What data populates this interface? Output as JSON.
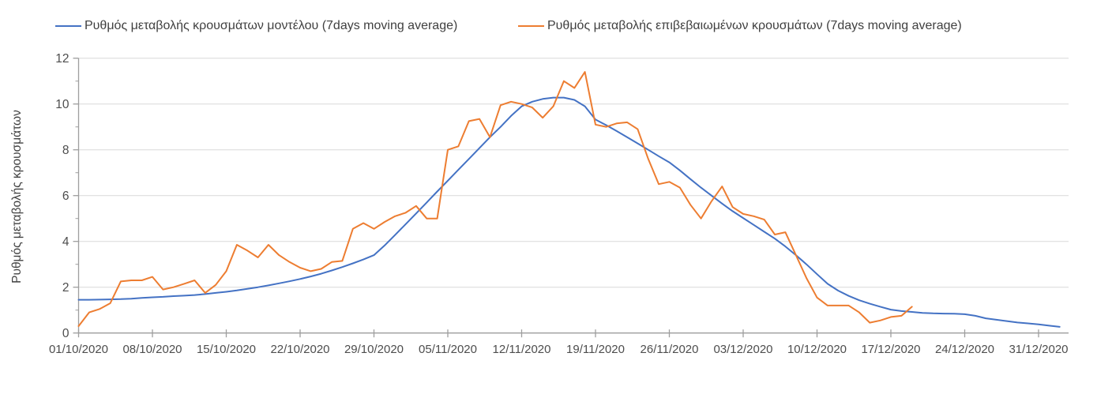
{
  "chart_data": {
    "type": "line",
    "title": "",
    "xlabel": "",
    "ylabel": "Ρυθμός μεταβολής κρουσμάτων",
    "ylim": [
      0,
      12
    ],
    "y_tick_step": 2,
    "y_minor_tick_step": 1,
    "y_tick_labels": [
      "0",
      "2",
      "4",
      "6",
      "8",
      "10",
      "12"
    ],
    "grid": "horizontal-major",
    "legend_position": "top",
    "x_tick_labels": [
      "01/10/2020",
      "08/10/2020",
      "15/10/2020",
      "22/10/2020",
      "29/10/2020",
      "05/11/2020",
      "12/11/2020",
      "19/11/2020",
      "26/11/2020",
      "03/12/2020",
      "10/12/2020",
      "17/12/2020",
      "24/12/2020",
      "31/12/2020"
    ],
    "x_days_per_tick": 7,
    "x_start_date": "01/10/2020",
    "axis_color": "#9e9e9e",
    "gridline_color": "#d9d9d9",
    "text_color": "#4d4d4d",
    "series": [
      {
        "name": "Ρυθμός μεταβολής κρουσμάτων μοντέλου (7days moving average)",
        "color": "#4472C4",
        "start_date": "01/10/2020",
        "step_days": 1,
        "values": [
          1.45,
          1.45,
          1.46,
          1.47,
          1.48,
          1.5,
          1.53,
          1.56,
          1.58,
          1.61,
          1.63,
          1.66,
          1.7,
          1.75,
          1.8,
          1.86,
          1.93,
          2.0,
          2.08,
          2.17,
          2.26,
          2.36,
          2.47,
          2.59,
          2.73,
          2.88,
          3.04,
          3.21,
          3.4,
          3.82,
          4.28,
          4.75,
          5.22,
          5.7,
          6.18,
          6.65,
          7.13,
          7.6,
          8.08,
          8.55,
          9.0,
          9.48,
          9.9,
          10.1,
          10.22,
          10.28,
          10.28,
          10.18,
          9.9,
          9.32,
          9.08,
          8.82,
          8.55,
          8.28,
          8.0,
          7.72,
          7.45,
          7.1,
          6.72,
          6.35,
          6.0,
          5.65,
          5.32,
          5.02,
          4.72,
          4.42,
          4.12,
          3.78,
          3.4,
          3.0,
          2.57,
          2.15,
          1.85,
          1.62,
          1.43,
          1.28,
          1.15,
          1.02,
          0.96,
          0.92,
          0.88,
          0.86,
          0.85,
          0.84,
          0.82,
          0.75,
          0.64,
          0.58,
          0.52,
          0.46,
          0.42,
          0.38,
          0.32,
          0.27
        ]
      },
      {
        "name": "Ρυθμός μεταβολής επιβεβαιωμένων κρουσμάτων (7days moving average)",
        "color": "#ED7D31",
        "start_date": "01/10/2020",
        "step_days": 1,
        "values": [
          0.3,
          0.9,
          1.05,
          1.3,
          2.25,
          2.3,
          2.3,
          2.45,
          1.9,
          2.0,
          2.15,
          2.3,
          1.75,
          2.1,
          2.7,
          3.85,
          3.6,
          3.3,
          3.85,
          3.4,
          3.1,
          2.85,
          2.7,
          2.8,
          3.1,
          3.15,
          4.55,
          4.8,
          4.55,
          4.85,
          5.1,
          5.25,
          5.55,
          5.0,
          5.0,
          8.0,
          8.15,
          9.25,
          9.35,
          8.55,
          9.95,
          10.1,
          10.0,
          9.85,
          9.4,
          9.9,
          11.0,
          10.7,
          11.4,
          9.1,
          9.0,
          9.15,
          9.2,
          8.9,
          7.6,
          6.5,
          6.6,
          6.35,
          5.6,
          5.0,
          5.75,
          6.4,
          5.5,
          5.2,
          5.1,
          4.95,
          4.3,
          4.4,
          3.4,
          2.4,
          1.55,
          1.2,
          1.2,
          1.2,
          0.9,
          0.45,
          0.55,
          0.7,
          0.75,
          1.15
        ]
      }
    ]
  }
}
